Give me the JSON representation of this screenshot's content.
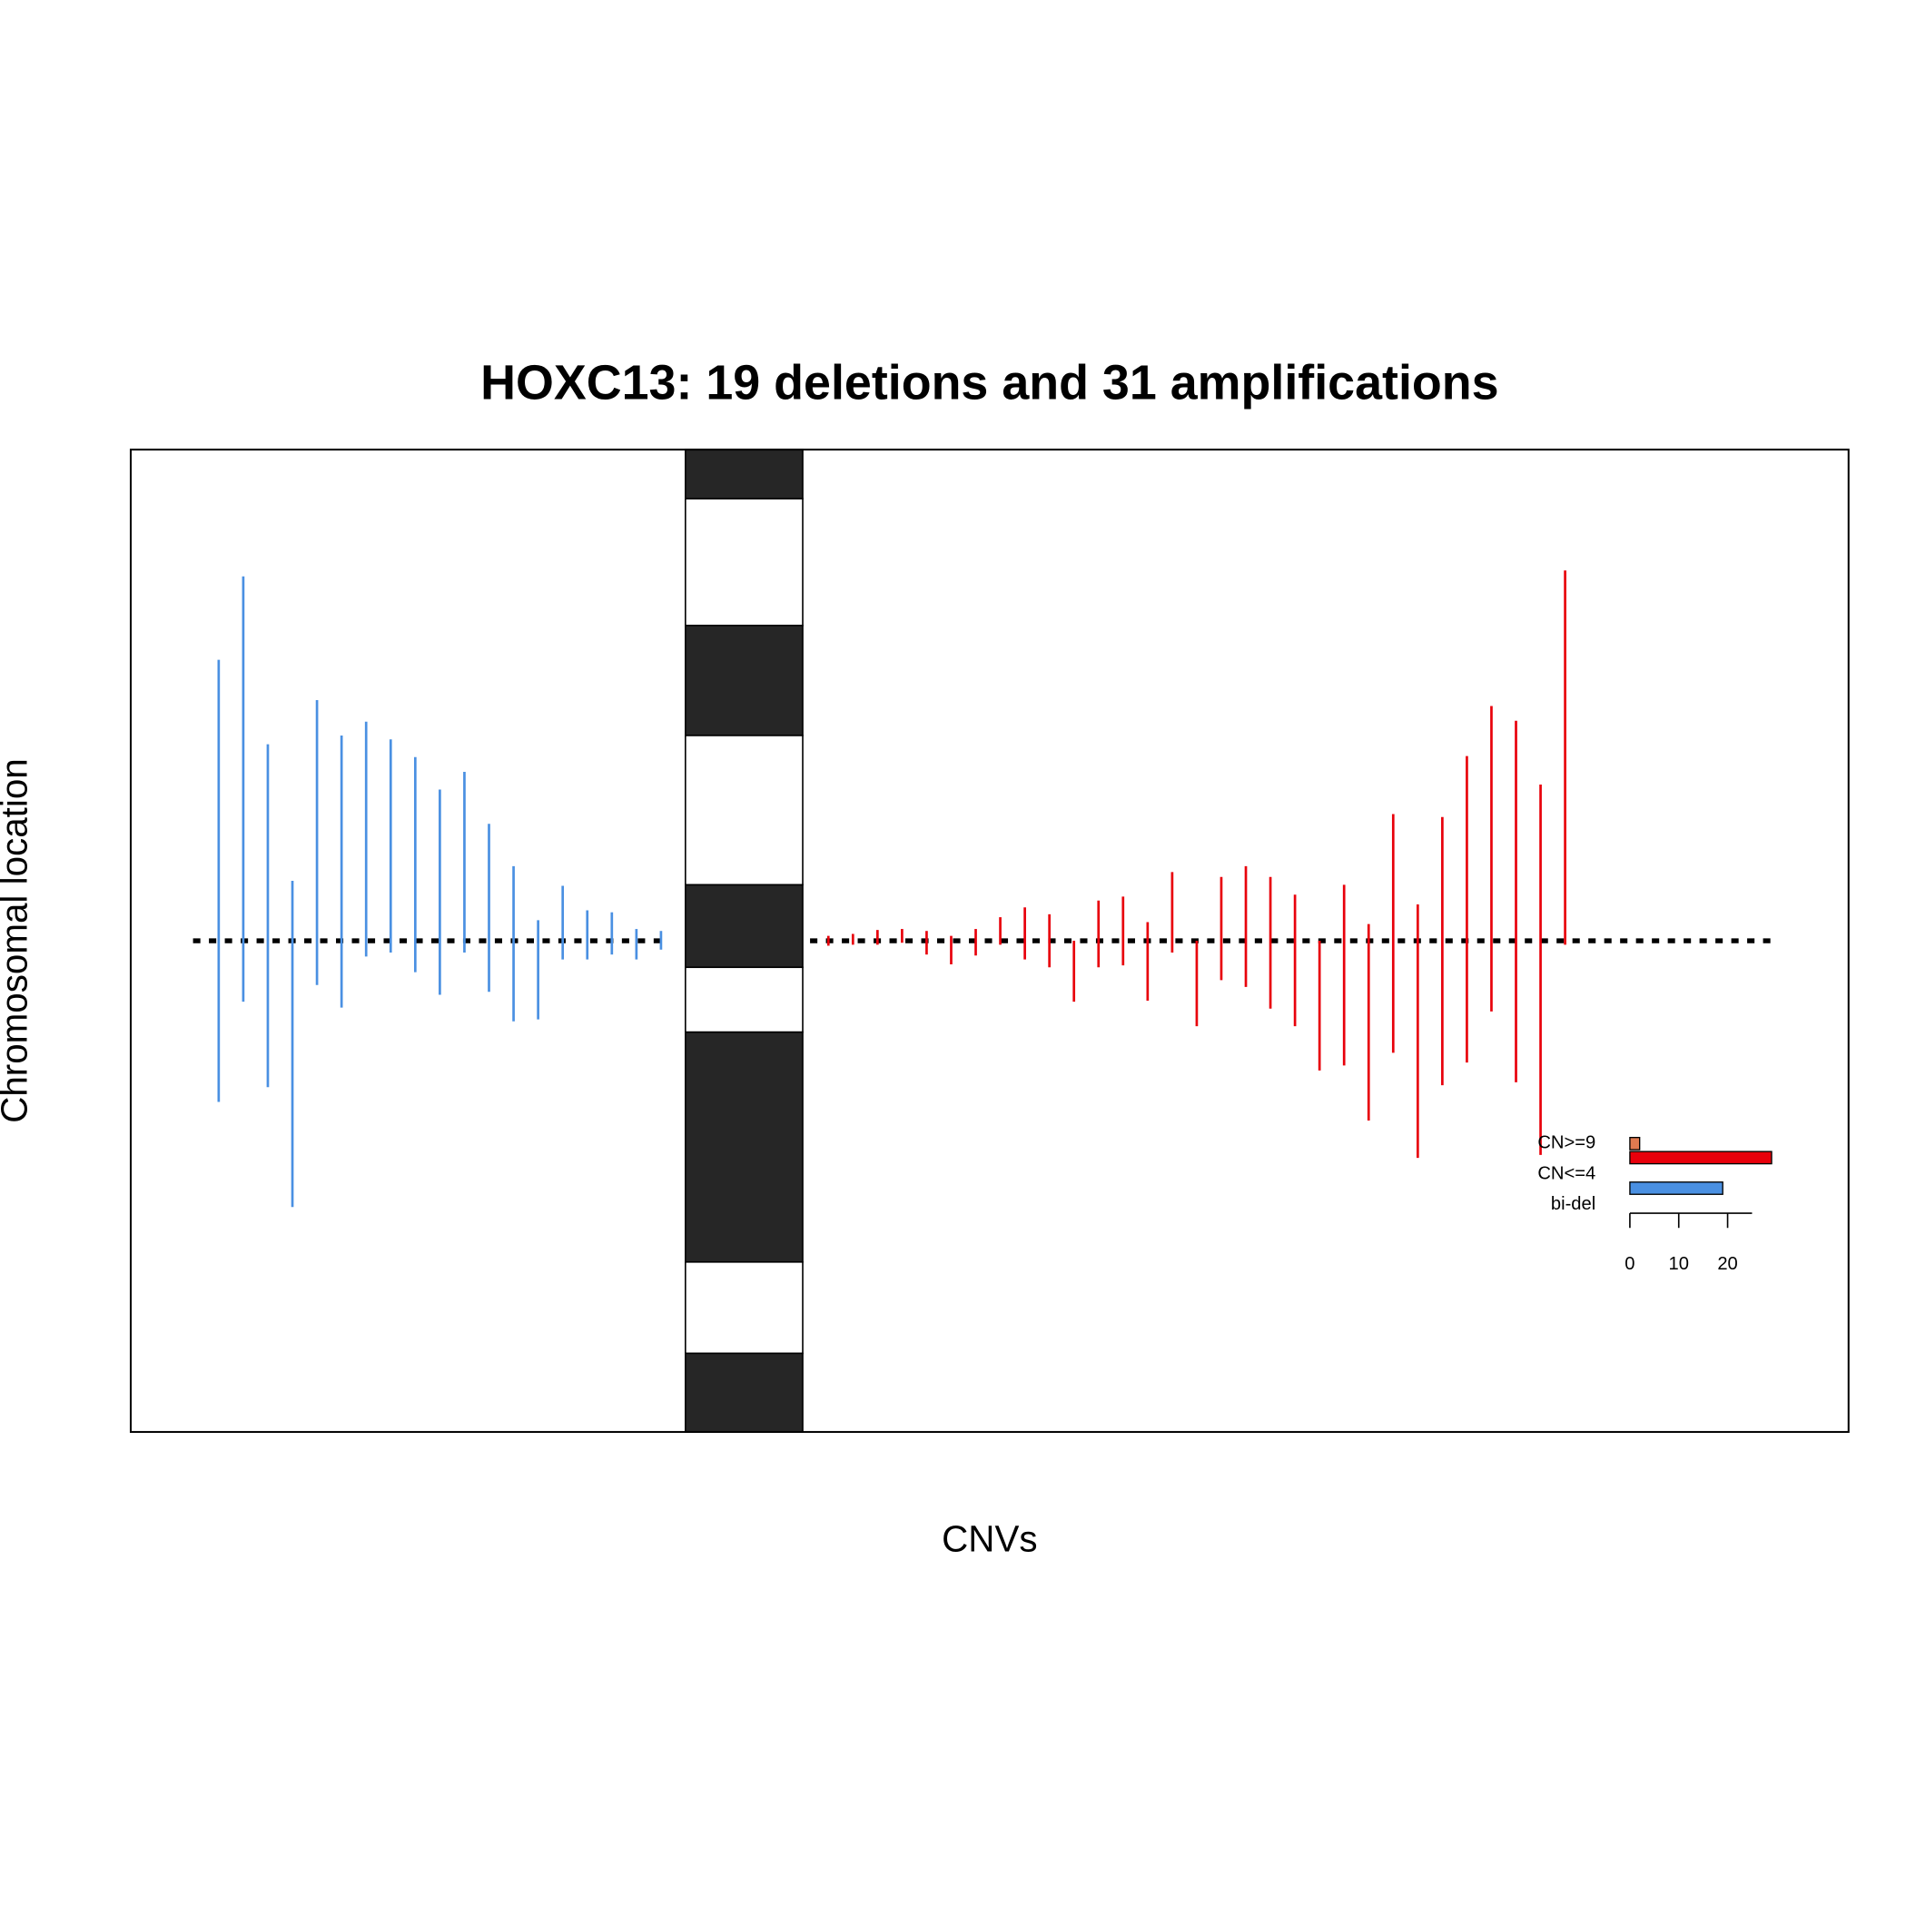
{
  "chart_data": {
    "type": "cnv",
    "title": "HOXC13: 19 deletions and 31 amplifications",
    "x_label": "CNVs",
    "y_label": "Chromosomal location",
    "ylim": [
      100,
      0
    ],
    "baseline": 50,
    "bands": {
      "bounds": [
        0,
        5.0,
        17.9,
        29.1,
        44.3,
        52.7,
        59.3,
        82.7,
        92.0,
        100
      ],
      "stain": [
        "dark",
        "light",
        "dark",
        "light",
        "dark",
        "light",
        "dark",
        "light",
        "dark"
      ],
      "colors": {
        "dark": "#262626",
        "light": "#ffffff"
      }
    },
    "deletions": {
      "color": "#4a90e2",
      "start": [
        21.4,
        12.9,
        30.0,
        43.9,
        25.5,
        29.1,
        27.7,
        29.5,
        31.3,
        34.6,
        32.8,
        38.1,
        42.4,
        47.9,
        44.4,
        46.9,
        47.1,
        48.8,
        49.0
      ],
      "end": [
        66.4,
        56.2,
        64.9,
        77.1,
        54.5,
        56.8,
        51.6,
        51.2,
        53.2,
        55.5,
        51.2,
        55.2,
        58.2,
        58.0,
        51.9,
        51.9,
        51.4,
        51.9,
        50.9
      ]
    },
    "amplifications": {
      "color": "#e8000b",
      "start": [
        49.5,
        49.3,
        48.9,
        48.8,
        49.0,
        49.5,
        48.8,
        47.6,
        46.6,
        47.3,
        50.0,
        45.9,
        45.5,
        48.1,
        43.0,
        50.0,
        43.5,
        42.4,
        43.5,
        45.3,
        50.0,
        44.3,
        48.3,
        37.1,
        46.3,
        37.4,
        31.2,
        26.1,
        27.6,
        34.1,
        12.3
      ],
      "end": [
        50.5,
        50.4,
        50.4,
        50.2,
        51.4,
        52.4,
        51.5,
        50.4,
        51.9,
        52.7,
        56.2,
        52.7,
        52.5,
        56.1,
        51.2,
        58.7,
        54.0,
        54.7,
        56.9,
        58.7,
        63.2,
        62.7,
        68.3,
        61.4,
        72.1,
        64.7,
        62.4,
        57.2,
        64.4,
        71.8,
        50.4
      ]
    },
    "inset": {
      "type": "bar",
      "categories": [
        "CN>=9",
        "CN<=4",
        "bi-del"
      ],
      "values": [
        2,
        29,
        19
      ],
      "colors": [
        "#e07a50",
        "#e8000b",
        "#4a90e2"
      ],
      "xlim": [
        0,
        25
      ],
      "xticks": [
        0,
        10,
        20
      ]
    }
  }
}
